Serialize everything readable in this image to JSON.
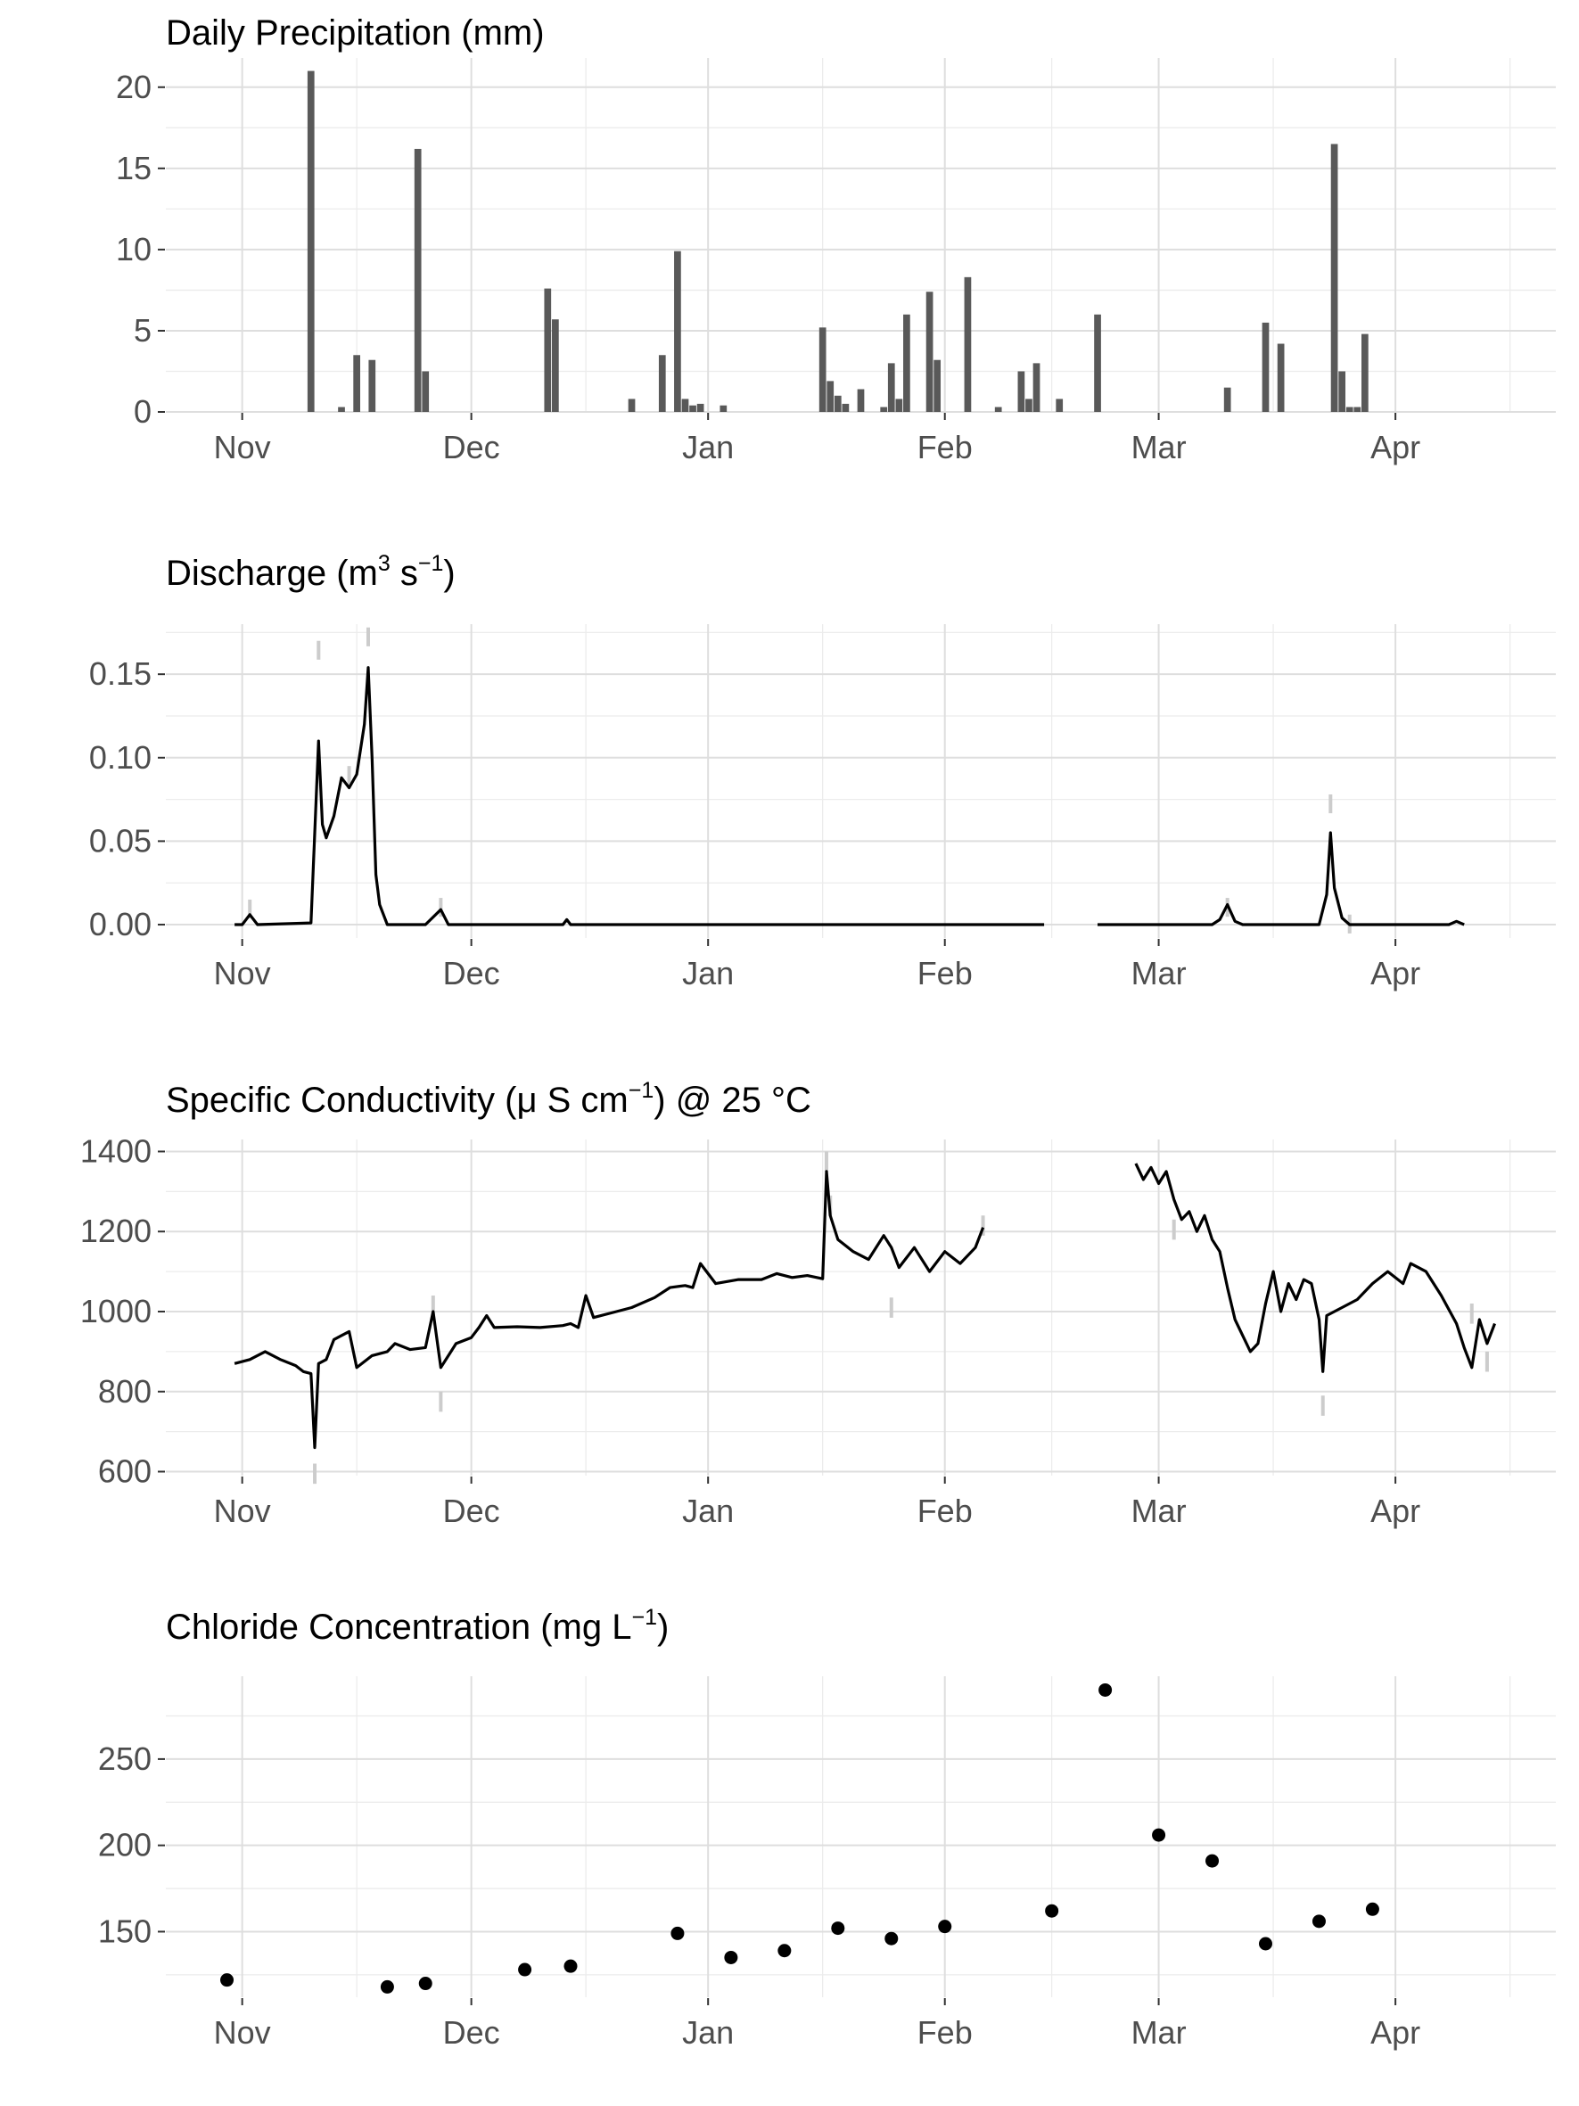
{
  "chart_data": [
    {
      "type": "bar",
      "title": "Daily Precipitation (mm)",
      "x_unit": "date",
      "x_ticks": [
        "Nov",
        "Dec",
        "Jan",
        "Feb",
        "Mar",
        "Apr"
      ],
      "y_ticks": [
        0,
        5,
        10,
        15,
        20
      ],
      "xlim": [
        "2018-10-22",
        "2019-04-22"
      ],
      "ylim": [
        0,
        21.8
      ],
      "grid": true,
      "x": [
        "2018-11-10",
        "2018-11-14",
        "2018-11-16",
        "2018-11-18",
        "2018-11-24",
        "2018-11-25",
        "2018-12-11",
        "2018-12-12",
        "2018-12-22",
        "2018-12-26",
        "2018-12-28",
        "2018-12-29",
        "2018-12-30",
        "2018-12-31",
        "2019-01-03",
        "2019-01-16",
        "2019-01-17",
        "2019-01-18",
        "2019-01-19",
        "2019-01-21",
        "2019-01-24",
        "2019-01-25",
        "2019-01-26",
        "2019-01-27",
        "2019-01-30",
        "2019-01-31",
        "2019-02-04",
        "2019-02-08",
        "2019-02-11",
        "2019-02-12",
        "2019-02-13",
        "2019-02-16",
        "2019-02-21",
        "2019-03-10",
        "2019-03-15",
        "2019-03-17",
        "2019-03-24",
        "2019-03-25",
        "2019-03-26",
        "2019-03-27",
        "2019-03-28"
      ],
      "values": [
        21.0,
        0.3,
        3.5,
        3.2,
        16.2,
        2.5,
        7.6,
        5.7,
        0.8,
        3.5,
        9.9,
        0.8,
        0.4,
        0.5,
        0.4,
        5.2,
        1.9,
        1.0,
        0.5,
        1.4,
        0.3,
        3.0,
        0.8,
        6.0,
        7.4,
        3.2,
        8.3,
        0.3,
        2.5,
        0.8,
        3.0,
        0.8,
        6.0,
        1.5,
        5.5,
        4.2,
        16.5,
        2.5,
        0.3,
        0.3,
        4.8
      ]
    },
    {
      "type": "line",
      "title": "Discharge (m3 s−1)",
      "title_parts": {
        "prefix": "Discharge (m",
        "sup1": "3",
        "mid": " s",
        "sup2": "−1",
        "suffix": ")"
      },
      "x_unit": "date",
      "x_ticks": [
        "Nov",
        "Dec",
        "Jan",
        "Feb",
        "Mar",
        "Apr"
      ],
      "y_ticks": [
        "0.00",
        "0.05",
        "0.10",
        "0.15"
      ],
      "xlim": [
        "2018-10-22",
        "2019-04-22"
      ],
      "ylim": [
        -0.008,
        0.18
      ],
      "grid": true,
      "series": [
        {
          "role": "mean",
          "color": "#000000",
          "segments": [
            [
              [
                "2018-10-31",
                0.0
              ],
              [
                "2018-11-01",
                0.0
              ],
              [
                "2018-11-02",
                0.006
              ],
              [
                "2018-11-03",
                0.0
              ],
              [
                "2018-11-10",
                0.001
              ],
              [
                "2018-11-11",
                0.11
              ],
              [
                "2018-11-11T12:00",
                0.06
              ],
              [
                "2018-11-12",
                0.052
              ],
              [
                "2018-11-13",
                0.065
              ],
              [
                "2018-11-14",
                0.088
              ],
              [
                "2018-11-15",
                0.082
              ],
              [
                "2018-11-16",
                0.09
              ],
              [
                "2018-11-17",
                0.12
              ],
              [
                "2018-11-17T12:00",
                0.154
              ],
              [
                "2018-11-18",
                0.1
              ],
              [
                "2018-11-18T12:00",
                0.03
              ],
              [
                "2018-11-19",
                0.012
              ],
              [
                "2018-11-20",
                0.0
              ],
              [
                "2018-11-25",
                0.0
              ],
              [
                "2018-11-27",
                0.009
              ],
              [
                "2018-11-28",
                0.0
              ],
              [
                "2018-12-13",
                0.0
              ],
              [
                "2018-12-13T12:00",
                0.003
              ],
              [
                "2018-12-14",
                0.0
              ],
              [
                "2019-02-14",
                0.0
              ]
            ],
            [
              [
                "2019-02-21",
                0.0
              ],
              [
                "2019-03-08",
                0.0
              ],
              [
                "2019-03-09",
                0.003
              ],
              [
                "2019-03-10",
                0.012
              ],
              [
                "2019-03-11",
                0.002
              ],
              [
                "2019-03-12",
                0.0
              ],
              [
                "2019-03-22",
                0.0
              ],
              [
                "2019-03-23",
                0.018
              ],
              [
                "2019-03-23T12:00",
                0.055
              ],
              [
                "2019-03-24",
                0.022
              ],
              [
                "2019-03-25",
                0.004
              ],
              [
                "2019-03-26",
                0.0
              ],
              [
                "2019-04-08",
                0.0
              ],
              [
                "2019-04-09",
                0.002
              ],
              [
                "2019-04-10",
                0.0
              ]
            ]
          ]
        },
        {
          "role": "range",
          "color": "#cccccc",
          "segments": [
            [
              [
                "2018-11-02",
                0.015
              ],
              [
                "2018-11-11",
                0.17
              ],
              [
                "2018-11-15",
                0.095
              ],
              [
                "2018-11-17T12:00",
                0.178
              ],
              [
                "2018-11-27",
                0.016
              ],
              [
                "2019-03-10",
                0.016
              ],
              [
                "2019-03-23T12:00",
                0.078
              ],
              [
                "2019-03-26",
                0.006
              ]
            ]
          ]
        }
      ]
    },
    {
      "type": "line",
      "title": "Specific Conductivity (μ S cm−1) @ 25 °C",
      "title_parts": {
        "prefix": "Specific Conductivity (μ S cm",
        "sup": "−1",
        "suffix": ") @ 25 °C"
      },
      "x_unit": "date",
      "x_ticks": [
        "Nov",
        "Dec",
        "Jan",
        "Feb",
        "Mar",
        "Apr"
      ],
      "y_ticks": [
        600,
        800,
        1000,
        1200,
        1400
      ],
      "xlim": [
        "2018-10-22",
        "2019-04-22"
      ],
      "ylim": [
        590,
        1430
      ],
      "grid": true,
      "series": [
        {
          "role": "mean",
          "color": "#000000",
          "segments": [
            [
              [
                "2018-10-31",
                870
              ],
              [
                "2018-11-02",
                880
              ],
              [
                "2018-11-04",
                900
              ],
              [
                "2018-11-06",
                880
              ],
              [
                "2018-11-08",
                865
              ],
              [
                "2018-11-09",
                850
              ],
              [
                "2018-11-10",
                845
              ],
              [
                "2018-11-10T12:00",
                660
              ],
              [
                "2018-11-11",
                870
              ],
              [
                "2018-11-12",
                880
              ],
              [
                "2018-11-13",
                930
              ],
              [
                "2018-11-15",
                950
              ],
              [
                "2018-11-16",
                860
              ],
              [
                "2018-11-18",
                890
              ],
              [
                "2018-11-20",
                900
              ],
              [
                "2018-11-21",
                920
              ],
              [
                "2018-11-23",
                905
              ],
              [
                "2018-11-25",
                910
              ],
              [
                "2018-11-26",
                1000
              ],
              [
                "2018-11-27",
                860
              ],
              [
                "2018-11-29",
                920
              ],
              [
                "2018-12-01",
                935
              ],
              [
                "2018-12-02",
                960
              ],
              [
                "2018-12-03",
                990
              ],
              [
                "2018-12-04",
                960
              ],
              [
                "2018-12-07",
                962
              ],
              [
                "2018-12-10",
                960
              ],
              [
                "2018-12-13",
                965
              ],
              [
                "2018-12-14",
                970
              ],
              [
                "2018-12-15",
                960
              ],
              [
                "2018-12-16",
                1040
              ],
              [
                "2018-12-17",
                985
              ],
              [
                "2018-12-20",
                1000
              ],
              [
                "2018-12-22",
                1010
              ],
              [
                "2018-12-25",
                1035
              ],
              [
                "2018-12-27",
                1060
              ],
              [
                "2018-12-29",
                1065
              ],
              [
                "2018-12-30",
                1060
              ],
              [
                "2018-12-31",
                1120
              ],
              [
                "2019-01-02",
                1070
              ],
              [
                "2019-01-05",
                1080
              ],
              [
                "2019-01-08",
                1080
              ],
              [
                "2019-01-10",
                1095
              ],
              [
                "2019-01-12",
                1085
              ],
              [
                "2019-01-14",
                1090
              ],
              [
                "2019-01-16",
                1082
              ],
              [
                "2019-01-16T12:00",
                1350
              ],
              [
                "2019-01-17",
                1240
              ],
              [
                "2019-01-18",
                1180
              ],
              [
                "2019-01-20",
                1150
              ],
              [
                "2019-01-22",
                1130
              ],
              [
                "2019-01-24",
                1190
              ],
              [
                "2019-01-25",
                1160
              ],
              [
                "2019-01-26",
                1110
              ],
              [
                "2019-01-28",
                1160
              ],
              [
                "2019-01-30",
                1100
              ],
              [
                "2019-02-01",
                1150
              ],
              [
                "2019-02-03",
                1120
              ],
              [
                "2019-02-05",
                1160
              ],
              [
                "2019-02-06",
                1210
              ]
            ],
            [
              [
                "2019-02-26",
                1370
              ],
              [
                "2019-02-27",
                1330
              ],
              [
                "2019-02-28",
                1360
              ],
              [
                "2019-03-01",
                1320
              ],
              [
                "2019-03-02",
                1350
              ],
              [
                "2019-03-03",
                1280
              ],
              [
                "2019-03-04",
                1230
              ],
              [
                "2019-03-05",
                1250
              ],
              [
                "2019-03-06",
                1200
              ],
              [
                "2019-03-07",
                1240
              ],
              [
                "2019-03-08",
                1180
              ],
              [
                "2019-03-09",
                1150
              ],
              [
                "2019-03-10",
                1060
              ],
              [
                "2019-03-11",
                980
              ],
              [
                "2019-03-12",
                940
              ],
              [
                "2019-03-13",
                900
              ],
              [
                "2019-03-14",
                920
              ],
              [
                "2019-03-15",
                1020
              ],
              [
                "2019-03-16",
                1100
              ],
              [
                "2019-03-17",
                1000
              ],
              [
                "2019-03-18",
                1070
              ],
              [
                "2019-03-19",
                1030
              ],
              [
                "2019-03-20",
                1080
              ],
              [
                "2019-03-21",
                1070
              ],
              [
                "2019-03-22",
                980
              ],
              [
                "2019-03-22T12:00",
                850
              ],
              [
                "2019-03-23",
                990
              ],
              [
                "2019-03-25",
                1010
              ],
              [
                "2019-03-27",
                1030
              ],
              [
                "2019-03-29",
                1070
              ],
              [
                "2019-03-31",
                1100
              ],
              [
                "2019-04-02",
                1070
              ],
              [
                "2019-04-03",
                1120
              ],
              [
                "2019-04-05",
                1100
              ],
              [
                "2019-04-07",
                1040
              ],
              [
                "2019-04-09",
                970
              ],
              [
                "2019-04-10",
                910
              ],
              [
                "2019-04-11",
                860
              ],
              [
                "2019-04-12",
                980
              ],
              [
                "2019-04-13",
                920
              ],
              [
                "2019-04-14",
                970
              ]
            ]
          ]
        },
        {
          "role": "range",
          "color": "#cccccc",
          "segments": [
            [
              [
                "2018-11-10T12:00",
                620
              ],
              [
                "2018-11-26",
                1040
              ],
              [
                "2018-11-27",
                800
              ],
              [
                "2019-01-16T12:00",
                1400
              ],
              [
                "2019-01-17",
                1290
              ],
              [
                "2019-01-25",
                1035
              ],
              [
                "2019-02-06",
                1240
              ]
            ],
            [
              [
                "2019-03-03",
                1230
              ],
              [
                "2019-03-22T12:00",
                790
              ],
              [
                "2019-04-11",
                1020
              ],
              [
                "2019-04-13",
                900
              ]
            ]
          ]
        }
      ]
    },
    {
      "type": "scatter",
      "title": "Chloride Concentration (mg L−1)",
      "title_parts": {
        "prefix": "Chloride Concentration (mg L",
        "sup": "−1",
        "suffix": ")"
      },
      "x_unit": "date",
      "x_ticks": [
        "Nov",
        "Dec",
        "Jan",
        "Feb",
        "Mar",
        "Apr"
      ],
      "y_ticks": [
        150,
        200,
        250
      ],
      "xlim": [
        "2018-10-22",
        "2019-04-22"
      ],
      "ylim": [
        112,
        298
      ],
      "grid": true,
      "points": [
        {
          "x": "2018-10-30",
          "y": 122
        },
        {
          "x": "2018-11-20",
          "y": 118
        },
        {
          "x": "2018-11-25",
          "y": 120
        },
        {
          "x": "2018-12-08",
          "y": 128
        },
        {
          "x": "2018-12-14",
          "y": 130
        },
        {
          "x": "2018-12-28",
          "y": 149
        },
        {
          "x": "2019-01-04",
          "y": 135
        },
        {
          "x": "2019-01-11",
          "y": 139
        },
        {
          "x": "2019-01-18",
          "y": 152
        },
        {
          "x": "2019-01-25",
          "y": 146
        },
        {
          "x": "2019-02-01",
          "y": 153
        },
        {
          "x": "2019-02-15",
          "y": 162
        },
        {
          "x": "2019-02-22",
          "y": 290
        },
        {
          "x": "2019-03-01",
          "y": 206
        },
        {
          "x": "2019-03-08",
          "y": 191
        },
        {
          "x": "2019-03-15",
          "y": 143
        },
        {
          "x": "2019-03-22",
          "y": 156
        },
        {
          "x": "2019-03-29",
          "y": 163
        }
      ]
    }
  ]
}
